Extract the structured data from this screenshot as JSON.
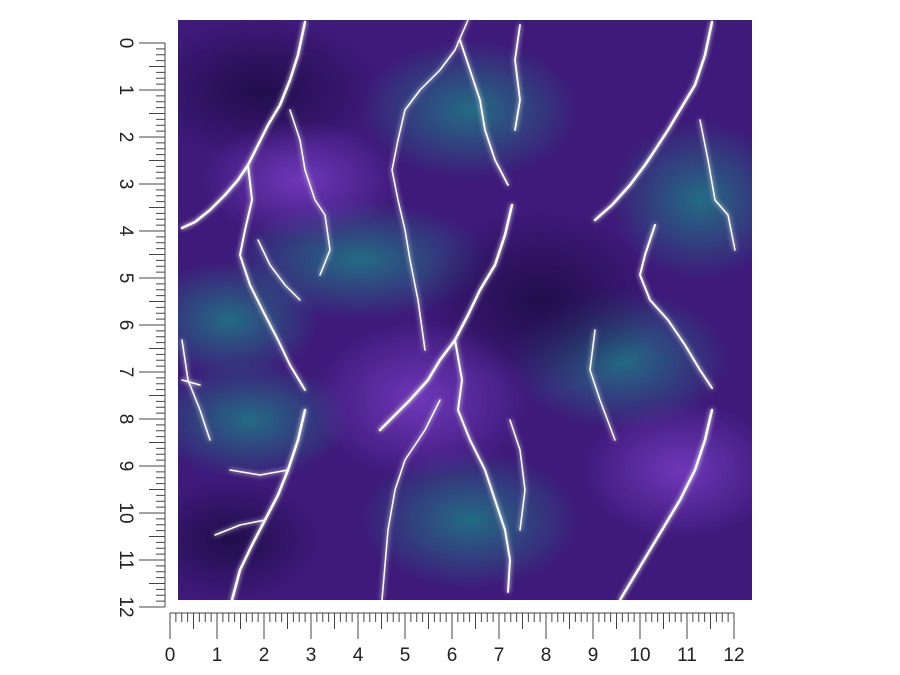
{
  "rulers": {
    "vertical": {
      "labels": [
        0,
        1,
        2,
        3,
        4,
        5,
        6,
        7,
        8,
        9,
        10,
        11,
        12
      ]
    },
    "horizontal": {
      "labels": [
        0,
        1,
        2,
        3,
        4,
        5,
        6,
        7,
        8,
        9,
        10,
        11,
        12
      ]
    }
  }
}
